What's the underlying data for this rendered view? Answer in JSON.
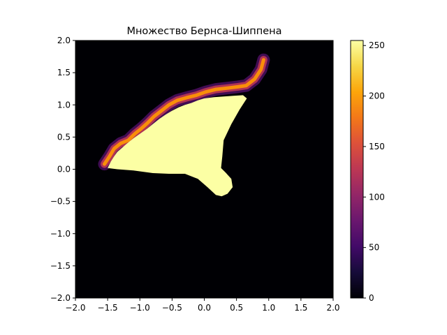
{
  "chart_data": {
    "type": "heatmap",
    "title": "Множество Бернса-Шиппена",
    "xlabel": "",
    "ylabel": "",
    "xlim": [
      -2.0,
      2.0
    ],
    "ylim": [
      -2.0,
      2.0
    ],
    "xticks": [
      "−2.0",
      "−1.5",
      "−1.0",
      "−0.5",
      "0.0",
      "0.5",
      "1.0",
      "1.5",
      "2.0"
    ],
    "yticks": [
      "−2.0",
      "−1.5",
      "−1.0",
      "−0.5",
      "0.0",
      "0.5",
      "1.0",
      "1.5",
      "2.0"
    ],
    "xtick_values": [
      -2.0,
      -1.5,
      -1.0,
      -0.5,
      0.0,
      0.5,
      1.0,
      1.5,
      2.0
    ],
    "ytick_values": [
      -2.0,
      -1.5,
      -1.0,
      -0.5,
      0.0,
      0.5,
      1.0,
      1.5,
      2.0
    ],
    "colormap": "inferno",
    "colorbar": {
      "range": [
        0,
        255
      ],
      "ticks": [
        "0",
        "50",
        "100",
        "150",
        "200",
        "250"
      ],
      "tick_values": [
        0,
        50,
        100,
        150,
        200,
        250
      ]
    },
    "grid": false,
    "max_value_region": {
      "value": 255,
      "boundary": [
        [
          -1.5,
          0.02
        ],
        [
          -1.45,
          0.12
        ],
        [
          -1.4,
          0.2
        ],
        [
          -1.35,
          0.27
        ],
        [
          -1.28,
          0.33
        ],
        [
          -1.2,
          0.4
        ],
        [
          -1.1,
          0.48
        ],
        [
          -1.0,
          0.55
        ],
        [
          -0.9,
          0.62
        ],
        [
          -0.8,
          0.7
        ],
        [
          -0.7,
          0.78
        ],
        [
          -0.6,
          0.85
        ],
        [
          -0.5,
          0.91
        ],
        [
          -0.4,
          0.96
        ],
        [
          -0.3,
          1.0
        ],
        [
          -0.2,
          1.03
        ],
        [
          -0.1,
          1.07
        ],
        [
          0.0,
          1.1
        ],
        [
          0.15,
          1.12
        ],
        [
          0.3,
          1.13
        ],
        [
          0.45,
          1.14
        ],
        [
          0.6,
          1.15
        ],
        [
          0.66,
          1.1
        ],
        [
          0.55,
          0.93
        ],
        [
          0.42,
          0.7
        ],
        [
          0.3,
          0.45
        ],
        [
          0.28,
          0.2
        ],
        [
          0.26,
          0.02
        ],
        [
          0.33,
          -0.05
        ],
        [
          0.42,
          -0.15
        ],
        [
          0.44,
          -0.28
        ],
        [
          0.36,
          -0.38
        ],
        [
          0.27,
          -0.42
        ],
        [
          0.18,
          -0.4
        ],
        [
          0.05,
          -0.28
        ],
        [
          -0.1,
          -0.15
        ],
        [
          -0.3,
          -0.07
        ],
        [
          -0.55,
          -0.07
        ],
        [
          -0.8,
          -0.06
        ],
        [
          -1.1,
          -0.02
        ],
        [
          -1.35,
          0.0
        ],
        [
          -1.5,
          0.02
        ]
      ]
    },
    "escape_band": [
      [
        -1.55,
        0.08
      ],
      [
        -1.47,
        0.2
      ],
      [
        -1.4,
        0.32
      ],
      [
        -1.3,
        0.4
      ],
      [
        -1.18,
        0.45
      ],
      [
        -1.08,
        0.55
      ],
      [
        -0.98,
        0.63
      ],
      [
        -0.88,
        0.72
      ],
      [
        -0.78,
        0.82
      ],
      [
        -0.65,
        0.92
      ],
      [
        -0.55,
        1.0
      ],
      [
        -0.42,
        1.07
      ],
      [
        -0.28,
        1.11
      ],
      [
        -0.12,
        1.15
      ],
      [
        0.02,
        1.2
      ],
      [
        0.18,
        1.24
      ],
      [
        0.35,
        1.26
      ],
      [
        0.52,
        1.28
      ],
      [
        0.65,
        1.3
      ],
      [
        0.78,
        1.4
      ],
      [
        0.88,
        1.55
      ],
      [
        0.92,
        1.7
      ]
    ],
    "colors": {
      "background": "#000004",
      "interior": "#fcffa4",
      "band_outer": "#57106e",
      "band_mid": "#bc3754",
      "band_inner": "#f98e09"
    }
  }
}
